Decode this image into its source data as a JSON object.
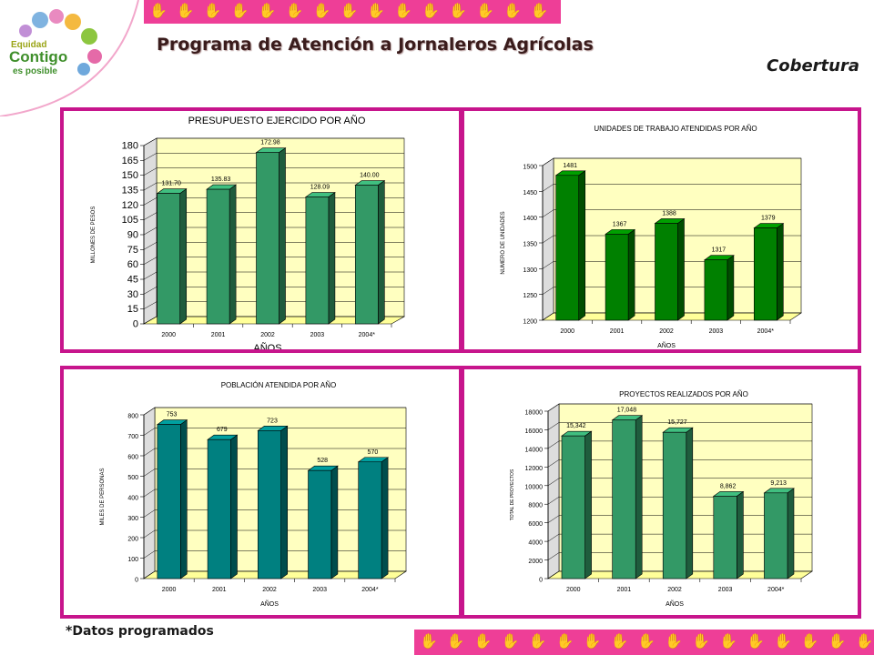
{
  "logo": {
    "line1": "Equidad",
    "line2": "Contigo",
    "line3": "es posible"
  },
  "header": {
    "title": "Programa de Atención a Jornaleros Agrícolas",
    "section": "Cobertura"
  },
  "footnote": "*Datos programados",
  "colors": {
    "accent": "#c7158c",
    "strip": "#ee3e97",
    "plot_wall": "#ffffc0",
    "plot_floor": "#ffff99"
  },
  "icons": [
    "hand-print-icon"
  ],
  "chart_data": [
    {
      "type": "bar",
      "title": "PRESUPUESTO EJERCIDO POR AÑO",
      "xlabel": "AÑOS",
      "ylabel": "MILLONES DE PESOS",
      "categories": [
        "2000",
        "2001",
        "2002",
        "2003",
        "2004*"
      ],
      "values": [
        131.7,
        135.83,
        172.98,
        128.09,
        140.0
      ],
      "labels": [
        "131.70",
        "135.83",
        "172.98",
        "128.09",
        "140.00"
      ],
      "ylim": [
        0,
        180
      ],
      "yticks": [
        "0",
        "15",
        "30",
        "45",
        "60",
        "75",
        "90",
        "105",
        "120",
        "135",
        "150",
        "165",
        "180"
      ],
      "color": "#339966",
      "grid": true
    },
    {
      "type": "bar",
      "title": "UNIDADES DE TRABAJO ATENDIDAS POR AÑO",
      "xlabel": "AÑOS",
      "ylabel": "NUMERO DE UNIDADES",
      "categories": [
        "2000",
        "2001",
        "2002",
        "2003",
        "2004*"
      ],
      "values": [
        1481,
        1367,
        1388,
        1317,
        1379
      ],
      "labels": [
        "1481",
        "1367",
        "1388",
        "1317",
        "1379"
      ],
      "ylim": [
        1200,
        1500
      ],
      "yticks": [
        "1200",
        "1250",
        "1300",
        "1350",
        "1400",
        "1450",
        "1500"
      ],
      "color": "#008000",
      "grid": true
    },
    {
      "type": "bar",
      "title": "POBLACIÓN ATENDIDA POR AÑO",
      "xlabel": "AÑOS",
      "ylabel": "MILES DE PERSONAS",
      "categories": [
        "2000",
        "2001",
        "2002",
        "2003",
        "2004*"
      ],
      "values": [
        753,
        679,
        723,
        528,
        570
      ],
      "labels": [
        "753",
        "679",
        "723",
        "528",
        "570"
      ],
      "ylim": [
        0,
        800
      ],
      "yticks": [
        "0",
        "100",
        "200",
        "300",
        "400",
        "500",
        "600",
        "700",
        "800"
      ],
      "color": "#008080",
      "grid": true
    },
    {
      "type": "bar",
      "title": "PROYECTOS REALIZADOS POR AÑO",
      "xlabel": "AÑOS",
      "ylabel": "TOTAL DE PROYECTOS",
      "categories": [
        "2000",
        "2001",
        "2002",
        "2003",
        "2004*"
      ],
      "values": [
        15342,
        17048,
        15727,
        8862,
        9213
      ],
      "labels": [
        "15,342",
        "17,048",
        "15,727",
        "8,862",
        "9,213"
      ],
      "ylim": [
        0,
        18000
      ],
      "yticks": [
        "0",
        "2000",
        "4000",
        "6000",
        "8000",
        "10000",
        "12000",
        "14000",
        "16000",
        "18000"
      ],
      "color": "#339966",
      "grid": true
    }
  ]
}
